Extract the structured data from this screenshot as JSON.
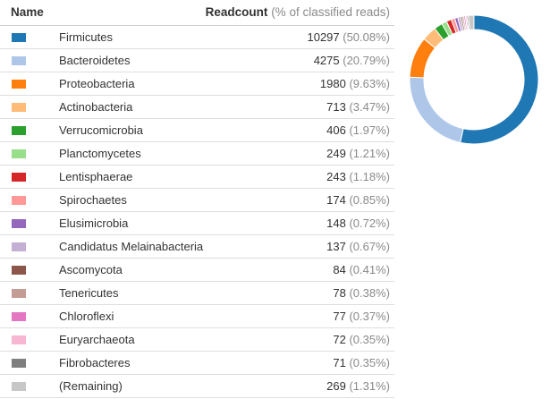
{
  "header": {
    "name_label": "Name",
    "readcount_label": "Readcount",
    "readcount_sub": "(% of classified reads)"
  },
  "chart_data": {
    "type": "pie",
    "style": "donut",
    "legend_placement": "left",
    "categories": [
      "Firmicutes",
      "Bacteroidetes",
      "Proteobacteria",
      "Actinobacteria",
      "Verrucomicrobia",
      "Planctomycetes",
      "Lentisphaerae",
      "Spirochaetes",
      "Elusimicrobia",
      "Candidatus Melainabacteria",
      "Ascomycota",
      "Tenericutes",
      "Chloroflexi",
      "Euryarchaeota",
      "Fibrobacteres",
      "(Remaining)"
    ],
    "values": [
      10297,
      4275,
      1980,
      713,
      406,
      249,
      243,
      174,
      148,
      137,
      84,
      78,
      77,
      72,
      71,
      269
    ],
    "percents": [
      50.08,
      20.79,
      9.63,
      3.47,
      1.97,
      1.21,
      1.18,
      0.85,
      0.72,
      0.67,
      0.41,
      0.38,
      0.37,
      0.35,
      0.35,
      1.31
    ],
    "colors": [
      "#1f77b4",
      "#aec7e8",
      "#ff7f0e",
      "#ffbb78",
      "#2ca02c",
      "#98df8a",
      "#d62728",
      "#ff9896",
      "#9467bd",
      "#c5b0d5",
      "#8c564b",
      "#c49c94",
      "#e377c2",
      "#f7b6d2",
      "#7f7f7f",
      "#c7c7c7"
    ]
  }
}
